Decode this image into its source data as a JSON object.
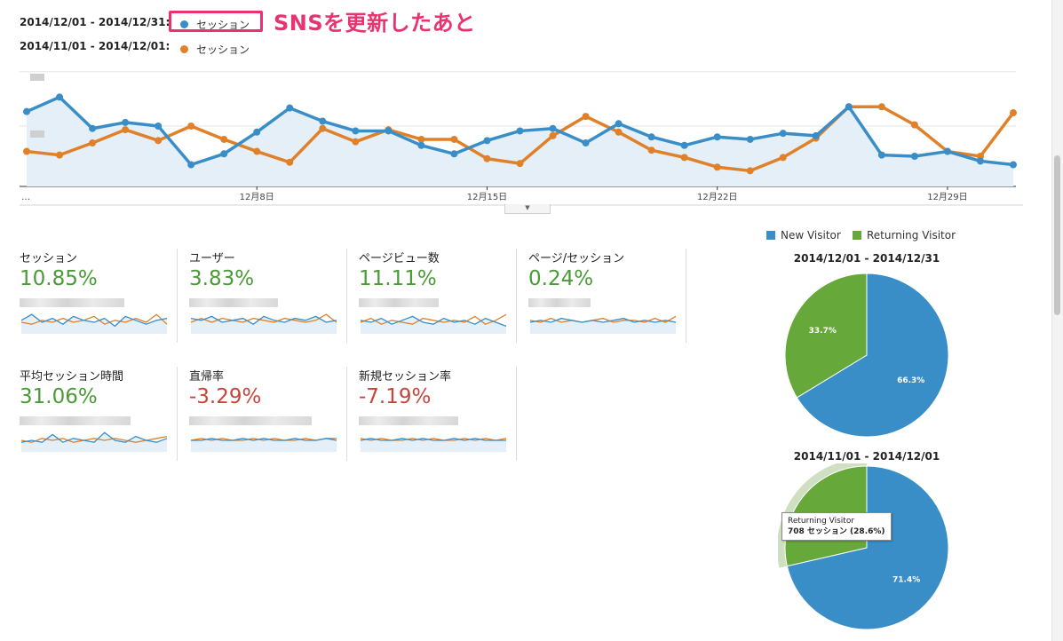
{
  "header": {
    "range1": "2014/12/01 - 2014/12/31:",
    "range2": "2014/11/01 - 2014/12/01:",
    "series1_label": "セッション",
    "series2_label": "セッション",
    "annotation": "SNSを更新したあと",
    "series1_color": "#3a8ec8",
    "series2_color": "#e0812a"
  },
  "chart_data": [
    {
      "type": "line",
      "x_ticks": [
        "…",
        "12月8日",
        "12月15日",
        "12月22日",
        "12月29日"
      ],
      "series": [
        {
          "name": "セッション",
          "color": "#3a8ec8",
          "fill": true,
          "values": [
            62,
            74,
            48,
            53,
            50,
            18,
            27,
            45,
            65,
            54,
            46,
            46,
            34,
            27,
            38,
            46,
            48,
            36,
            52,
            41,
            34,
            41,
            39,
            44,
            42,
            66,
            26,
            25,
            29,
            21,
            18
          ]
        },
        {
          "name": "セッション",
          "color": "#e0812a",
          "fill": false,
          "values": [
            29,
            26,
            36,
            47,
            38,
            50,
            39,
            29,
            20,
            48,
            37,
            47,
            39,
            39,
            23,
            19,
            42,
            58,
            45,
            30,
            24,
            16,
            13,
            24,
            40,
            66,
            66,
            51,
            29,
            25,
            61
          ]
        }
      ],
      "ylim": [
        0,
        100
      ],
      "grid": true
    },
    {
      "type": "pie",
      "title": "2014/12/01 - 2014/12/31",
      "labels": [
        "New Visitor",
        "Returning Visitor"
      ],
      "values": [
        66.3,
        33.7
      ],
      "value_labels": [
        "66.3%",
        "33.7%"
      ],
      "colors": [
        "#3a8ec8",
        "#67a83a"
      ]
    },
    {
      "type": "pie",
      "title": "2014/11/01 - 2014/12/01",
      "labels": [
        "New Visitor",
        "Returning Visitor"
      ],
      "values": [
        71.4,
        28.6
      ],
      "value_labels": [
        "71.4%",
        ""
      ],
      "colors": [
        "#3a8ec8",
        "#67a83a"
      ]
    }
  ],
  "metrics": [
    {
      "label": "セッション",
      "value": "10.85%",
      "trend": "pos",
      "s1": [
        6,
        9,
        5,
        7,
        4,
        8,
        6,
        5,
        7,
        3,
        8,
        6,
        4,
        6,
        7
      ],
      "s2": [
        5,
        4,
        6,
        5,
        7,
        5,
        6,
        8,
        4,
        6,
        5,
        7,
        5,
        9,
        4
      ]
    },
    {
      "label": "ユーザー",
      "value": "3.83%",
      "trend": "pos",
      "s1": [
        7,
        6,
        8,
        5,
        6,
        7,
        4,
        8,
        6,
        5,
        7,
        6,
        8,
        5,
        6
      ],
      "s2": [
        5,
        7,
        5,
        7,
        6,
        5,
        7,
        6,
        5,
        7,
        6,
        5,
        6,
        9,
        5
      ]
    },
    {
      "label": "ページビュー数",
      "value": "11.11%",
      "trend": "pos",
      "s1": [
        6,
        5,
        7,
        4,
        6,
        8,
        5,
        4,
        7,
        5,
        6,
        4,
        7,
        5,
        3
      ],
      "s2": [
        5,
        7,
        4,
        6,
        5,
        4,
        7,
        6,
        5,
        6,
        5,
        8,
        4,
        6,
        9
      ]
    },
    {
      "label": "ページ/セッション",
      "value": "0.24%",
      "trend": "pos",
      "s1": [
        5,
        6,
        5,
        7,
        6,
        5,
        6,
        5,
        6,
        7,
        5,
        6,
        5,
        6,
        5
      ],
      "s2": [
        6,
        5,
        7,
        5,
        6,
        5,
        6,
        7,
        5,
        6,
        6,
        5,
        7,
        5,
        8
      ]
    },
    {
      "label": "平均セッション時間",
      "value": "31.06%",
      "trend": "pos",
      "s1": [
        4,
        5,
        4,
        8,
        4,
        6,
        5,
        4,
        9,
        5,
        4,
        7,
        5,
        4,
        6
      ],
      "s2": [
        5,
        4,
        6,
        5,
        6,
        4,
        5,
        6,
        5,
        6,
        5,
        4,
        5,
        6,
        7
      ]
    },
    {
      "label": "直帰率",
      "value": "-3.29%",
      "trend": "neg",
      "s1": [
        5,
        5,
        6,
        5,
        5,
        6,
        5,
        6,
        5,
        5,
        6,
        5,
        5,
        6,
        5
      ],
      "s2": [
        5,
        6,
        5,
        6,
        5,
        5,
        6,
        5,
        6,
        5,
        5,
        6,
        5,
        6,
        6
      ]
    },
    {
      "label": "新規セッション率",
      "value": "-7.19%",
      "trend": "neg",
      "s1": [
        5,
        6,
        5,
        5,
        6,
        5,
        6,
        5,
        5,
        6,
        5,
        6,
        5,
        5,
        5
      ],
      "s2": [
        6,
        5,
        6,
        5,
        5,
        6,
        5,
        6,
        5,
        5,
        6,
        5,
        6,
        5,
        6
      ]
    }
  ],
  "pie_legend": {
    "new_label": "New Visitor",
    "returning_label": "Returning Visitor",
    "new_color": "#3a8ec8",
    "returning_color": "#67a83a"
  },
  "tooltip": {
    "line1": "Returning Visitor",
    "line2": "708 セッション (28.6%)"
  }
}
